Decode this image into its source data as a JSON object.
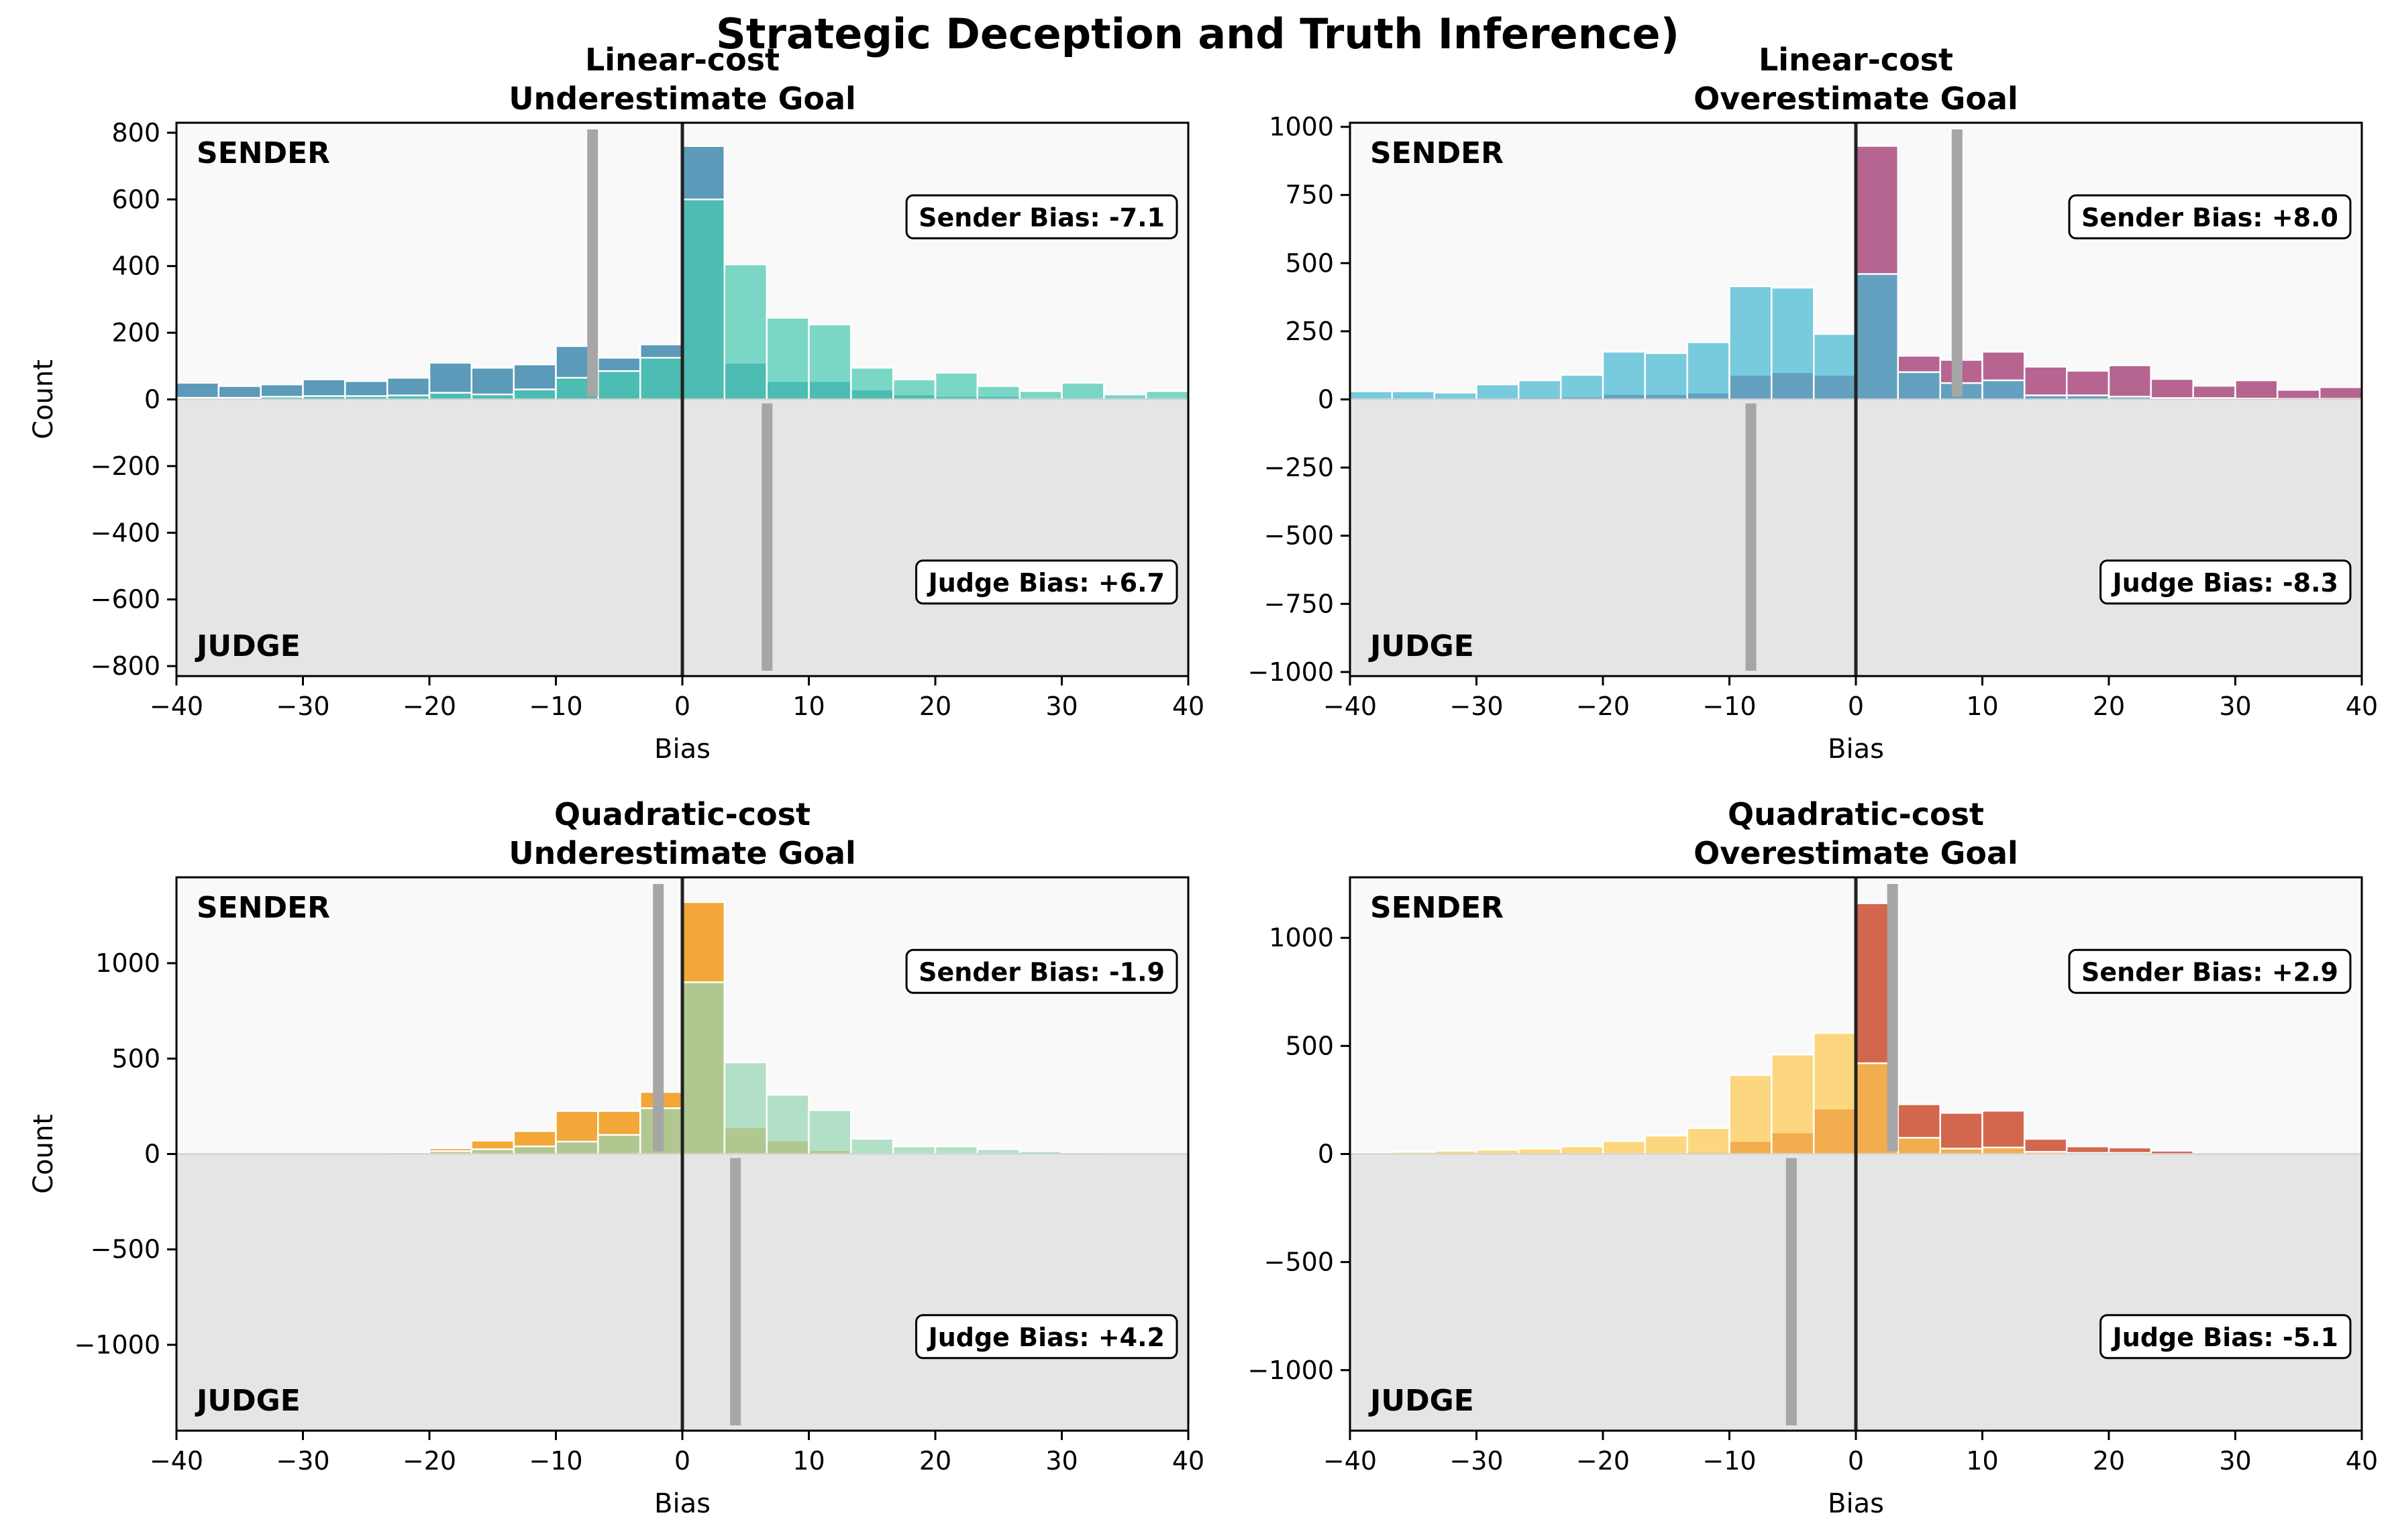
{
  "figure": {
    "title": "Strategic Deception and Truth Inference)"
  },
  "chart_data": [
    {
      "type": "bar",
      "title_line1": "Linear-cost",
      "title_line2": "Underestimate Goal",
      "xlabel": "Bias",
      "ylabel": "Count",
      "xlim": [
        -40,
        40
      ],
      "ylim": [
        -830,
        830
      ],
      "xticks": [
        -40,
        -30,
        -20,
        -10,
        0,
        10,
        20,
        30,
        40
      ],
      "yticks": [
        -800,
        -600,
        -400,
        -200,
        0,
        200,
        400,
        600,
        800
      ],
      "bin_edges": [
        -40,
        -36.67,
        -33.33,
        -30,
        -26.67,
        -23.33,
        -20,
        -16.67,
        -13.33,
        -10,
        -6.67,
        -3.33,
        0,
        3.33,
        6.67,
        10,
        13.33,
        16.67,
        20,
        23.33,
        26.67,
        30,
        33.33,
        36.67,
        40
      ],
      "sender_label": "SENDER",
      "judge_label": "JUDGE",
      "sender_bias_text": "Sender Bias: -7.1",
      "judge_bias_text": "Judge Bias: +6.7",
      "sender_bias": -7.1,
      "judge_bias": 6.7,
      "series": [
        {
          "color": "#2e7fa5",
          "values": [
            50,
            40,
            45,
            60,
            55,
            65,
            110,
            95,
            105,
            160,
            125,
            165,
            760,
            110,
            55,
            55,
            30,
            15,
            10,
            10,
            5,
            5,
            3,
            2
          ]
        },
        {
          "color": "#48c9b0",
          "values": [
            5,
            5,
            8,
            10,
            10,
            12,
            20,
            15,
            30,
            65,
            85,
            125,
            600,
            405,
            245,
            225,
            95,
            60,
            80,
            40,
            25,
            50,
            15,
            25
          ]
        }
      ]
    },
    {
      "type": "bar",
      "title_line1": "Linear-cost",
      "title_line2": "Overestimate Goal",
      "xlabel": "Bias",
      "ylabel": "",
      "xlim": [
        -40,
        40
      ],
      "ylim": [
        -1015,
        1015
      ],
      "xticks": [
        -40,
        -30,
        -20,
        -10,
        0,
        10,
        20,
        30,
        40
      ],
      "yticks": [
        -1000,
        -750,
        -500,
        -250,
        0,
        250,
        500,
        750,
        1000
      ],
      "bin_edges": [
        -40,
        -36.67,
        -33.33,
        -30,
        -26.67,
        -23.33,
        -20,
        -16.67,
        -13.33,
        -10,
        -6.67,
        -3.33,
        0,
        3.33,
        6.67,
        10,
        13.33,
        16.67,
        20,
        23.33,
        26.67,
        30,
        33.33,
        36.67,
        40
      ],
      "sender_label": "SENDER",
      "judge_label": "JUDGE",
      "sender_bias_text": "Sender Bias: +8.0",
      "judge_bias_text": "Judge Bias: -8.3",
      "sender_bias": 8.0,
      "judge_bias": -8.3,
      "series": [
        {
          "color": "#a23b72",
          "values": [
            5,
            5,
            5,
            5,
            8,
            10,
            20,
            20,
            25,
            90,
            100,
            90,
            930,
            160,
            145,
            175,
            120,
            105,
            125,
            75,
            50,
            70,
            35,
            45
          ]
        },
        {
          "color": "#45b7d1",
          "values": [
            30,
            30,
            25,
            55,
            70,
            90,
            175,
            170,
            210,
            415,
            410,
            240,
            460,
            100,
            60,
            70,
            15,
            15,
            10,
            5,
            5,
            3,
            2,
            2
          ]
        }
      ]
    },
    {
      "type": "bar",
      "title_line1": "Quadratic-cost",
      "title_line2": "Underestimate Goal",
      "xlabel": "Bias",
      "ylabel": "Count",
      "xlim": [
        -40,
        40
      ],
      "ylim": [
        -1450,
        1450
      ],
      "xticks": [
        -40,
        -30,
        -20,
        -10,
        0,
        10,
        20,
        30,
        40
      ],
      "yticks": [
        -1000,
        -500,
        0,
        500,
        1000
      ],
      "bin_edges": [
        -40,
        -36.67,
        -33.33,
        -30,
        -26.67,
        -23.33,
        -20,
        -16.67,
        -13.33,
        -10,
        -6.67,
        -3.33,
        0,
        3.33,
        6.67,
        10,
        13.33,
        16.67,
        20,
        23.33,
        26.67,
        30,
        33.33,
        36.67,
        40
      ],
      "sender_label": "SENDER",
      "judge_label": "JUDGE",
      "sender_bias_text": "Sender Bias: -1.9",
      "judge_bias_text": "Judge Bias: +4.2",
      "sender_bias": -1.9,
      "judge_bias": 4.2,
      "series": [
        {
          "color": "#f18f01",
          "values": [
            0,
            0,
            0,
            0,
            0,
            5,
            30,
            70,
            120,
            225,
            225,
            325,
            1320,
            140,
            70,
            20,
            10,
            5,
            5,
            0,
            0,
            0,
            0,
            0
          ]
        },
        {
          "color": "#95d5b2",
          "values": [
            0,
            0,
            0,
            0,
            0,
            10,
            15,
            25,
            40,
            65,
            100,
            240,
            900,
            480,
            310,
            230,
            80,
            40,
            40,
            25,
            15,
            10,
            0,
            0
          ]
        }
      ]
    },
    {
      "type": "bar",
      "title_line1": "Quadratic-cost",
      "title_line2": "Overestimate Goal",
      "xlabel": "Bias",
      "ylabel": "",
      "xlim": [
        -40,
        40
      ],
      "ylim": [
        -1280,
        1280
      ],
      "xticks": [
        -40,
        -30,
        -20,
        -10,
        0,
        10,
        20,
        30,
        40
      ],
      "yticks": [
        -1000,
        -500,
        0,
        500,
        1000
      ],
      "bin_edges": [
        -40,
        -36.67,
        -33.33,
        -30,
        -26.67,
        -23.33,
        -20,
        -16.67,
        -13.33,
        -10,
        -6.67,
        -3.33,
        0,
        3.33,
        6.67,
        10,
        13.33,
        16.67,
        20,
        23.33,
        26.67,
        30,
        33.33,
        36.67,
        40
      ],
      "sender_label": "SENDER",
      "judge_label": "JUDGE",
      "sender_bias_text": "Sender Bias: +2.9",
      "judge_bias_text": "Judge Bias: -5.1",
      "sender_bias": 2.9,
      "judge_bias": -5.1,
      "series": [
        {
          "color": "#c73e1d",
          "values": [
            0,
            0,
            0,
            0,
            0,
            0,
            5,
            5,
            10,
            60,
            100,
            210,
            1160,
            230,
            190,
            200,
            70,
            35,
            30,
            15,
            0,
            0,
            0,
            0
          ]
        },
        {
          "color": "#fdc94f",
          "values": [
            8,
            10,
            15,
            20,
            25,
            35,
            60,
            85,
            120,
            365,
            460,
            560,
            420,
            75,
            25,
            30,
            10,
            5,
            5,
            0,
            0,
            0,
            0,
            0
          ]
        }
      ]
    }
  ]
}
